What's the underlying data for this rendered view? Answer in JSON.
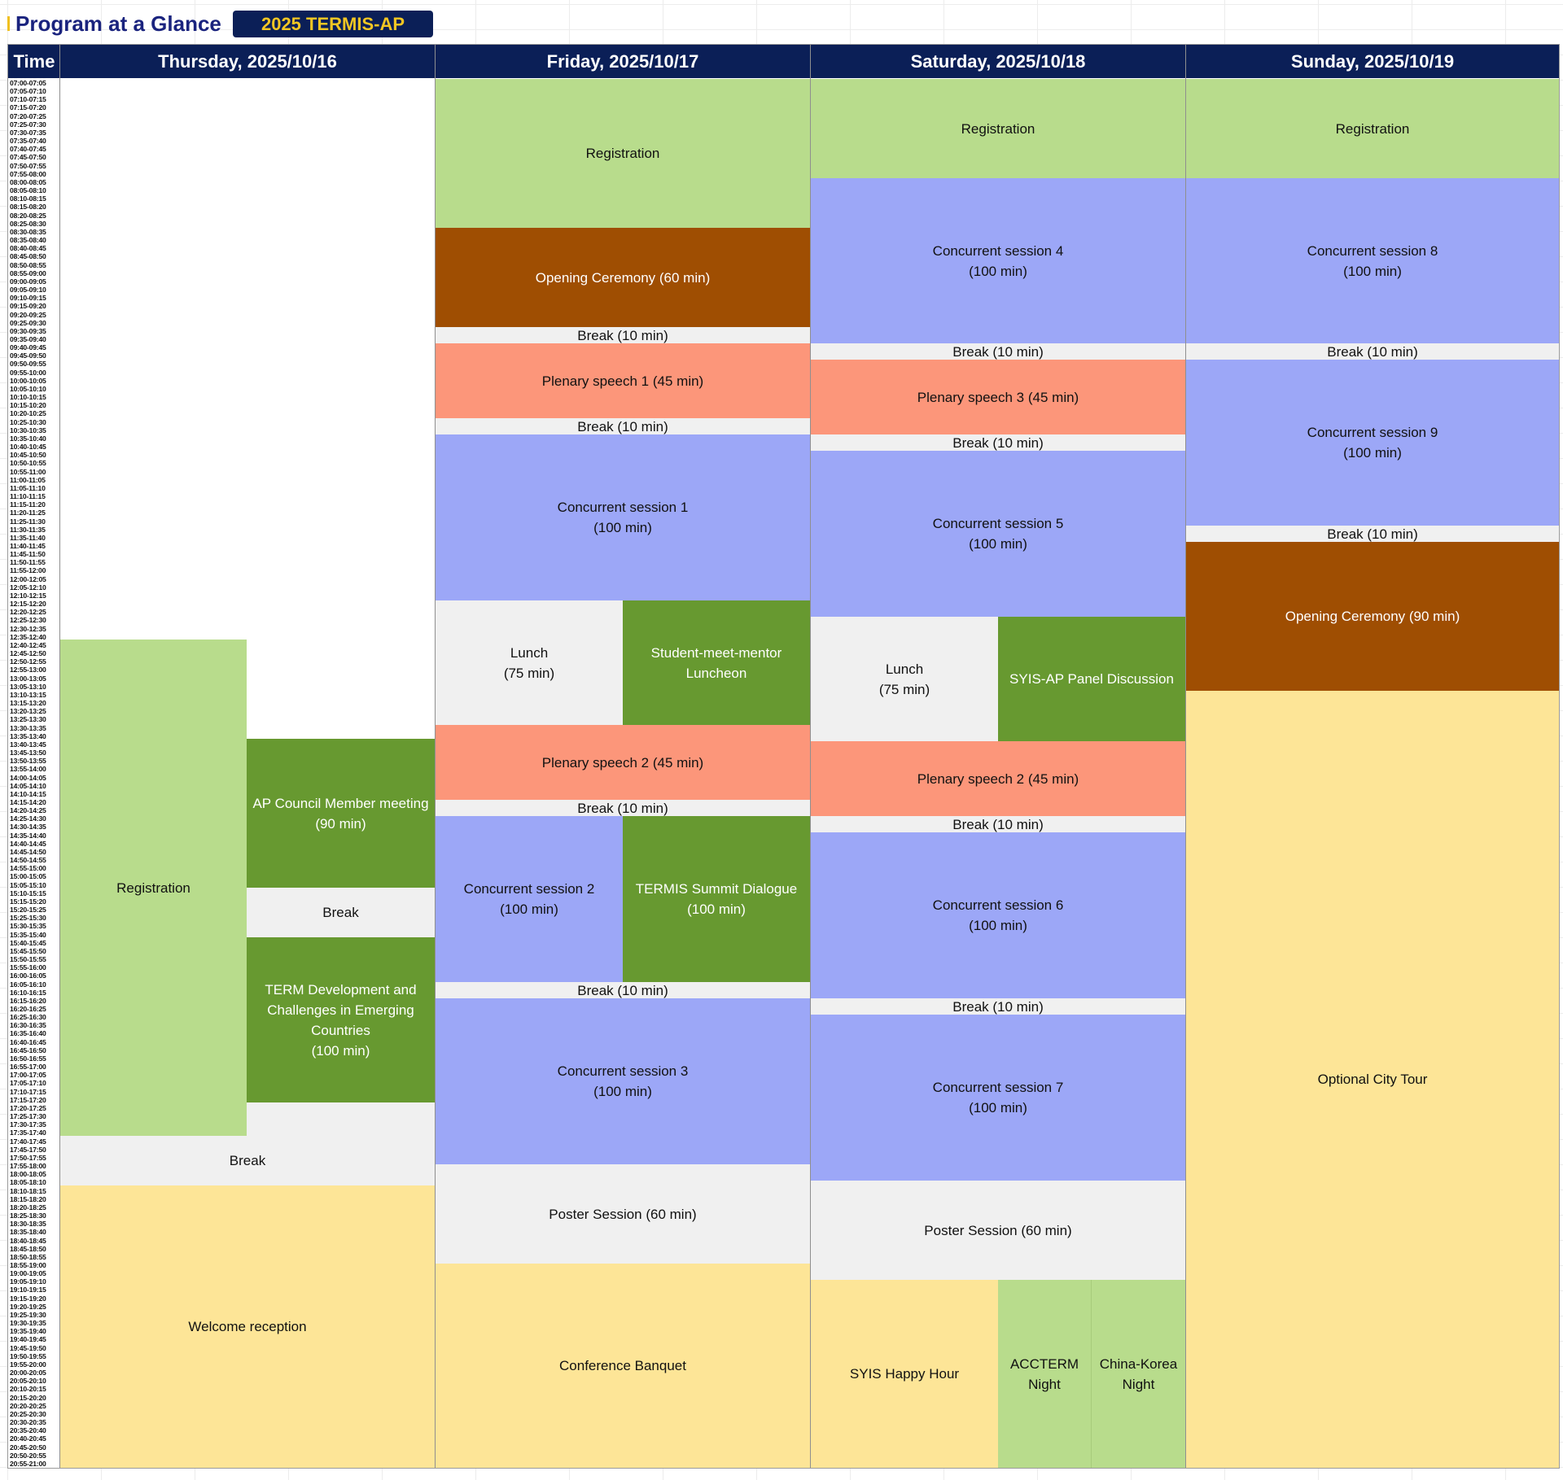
{
  "header": {
    "title": "Program at a Glance",
    "badge": "2025 TERMIS-AP"
  },
  "table": {
    "time_header": "Time",
    "days": [
      "Thursday, 2025/10/16",
      "Friday, 2025/10/17",
      "Saturday, 2025/10/18",
      "Sunday, 2025/10/19"
    ],
    "time_start": "07:00",
    "time_end": "21:00",
    "slot_minutes": 5
  },
  "colors": {
    "registration": "#b8dc8c",
    "meeting": "#679930",
    "session": "#9ca7f7",
    "plenary": "#fc967a",
    "ceremony": "#9f4e02",
    "break": "#f0f0f0",
    "social": "#fde597",
    "header": "#0b1f57",
    "badge_text": "#f3c623",
    "title_text": "#1a237e"
  },
  "events": {
    "thu": {
      "registration": "Registration",
      "ap_council": "AP Council Member meeting\n(90 min)",
      "break1": "Break",
      "term_dev": "TERM Development and\nChallenges in Emerging\nCountries\n(100 min)",
      "break2": "Break",
      "welcome": "Welcome reception"
    },
    "fri": {
      "registration": "Registration",
      "opening": "Opening Ceremony (60 min)",
      "break1": "Break (10 min)",
      "plenary1": "Plenary speech 1 (45 min)",
      "break2": "Break (10 min)",
      "cs1": "Concurrent session 1\n(100 min)",
      "lunch": "Lunch\n(75 min)",
      "mentor": "Student-meet-mentor\nLuncheon",
      "plenary2": "Plenary speech 2 (45 min)",
      "break3": "Break (10 min)",
      "cs2": "Concurrent session 2\n(100 min)",
      "summit": "TERMIS Summit Dialogue\n(100 min)",
      "break4": "Break (10 min)",
      "cs3": "Concurrent session 3\n(100 min)",
      "poster": "Poster Session (60 min)",
      "banquet": "Conference Banquet"
    },
    "sat": {
      "registration": "Registration",
      "cs4": "Concurrent session 4\n(100 min)",
      "break1": "Break (10 min)",
      "plenary3": "Plenary speech 3 (45 min)",
      "break2": "Break (10 min)",
      "cs5": "Concurrent session 5\n(100 min)",
      "lunch": "Lunch\n(75 min)",
      "syis_panel": "SYIS-AP Panel Discussion",
      "plenary2": "Plenary speech 2 (45 min)",
      "break3": "Break (10 min)",
      "cs6": "Concurrent session 6\n(100 min)",
      "break4": "Break (10 min)",
      "cs7": "Concurrent session 7\n(100 min)",
      "poster": "Poster Session (60 min)",
      "happy_hour": "SYIS Happy Hour",
      "accterm": "ACCTERM\nNight",
      "china_korea": "China-Korea\nNight"
    },
    "sun": {
      "registration": "Registration",
      "cs8": "Concurrent session 8\n(100 min)",
      "break1": "Break (10 min)",
      "cs9": "Concurrent session 9\n(100 min)",
      "break2": "Break (10 min)",
      "opening": "Opening Ceremony (90 min)",
      "city_tour": "Optional City Tour"
    }
  }
}
